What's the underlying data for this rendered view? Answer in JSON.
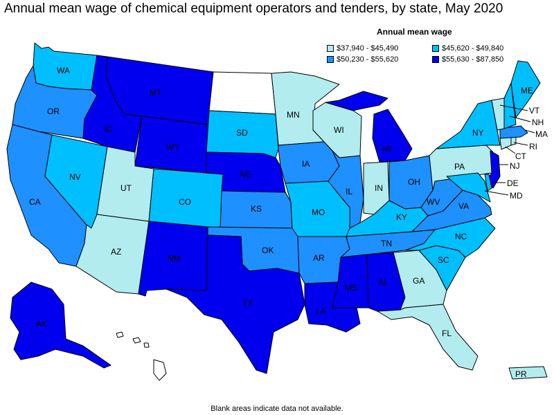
{
  "title": "Annual mean wage of chemical equipment operators and tenders, by state, May 2020",
  "legend": {
    "title": "Annual mean wage",
    "items": [
      {
        "label": "$37,940 - $45,490",
        "color": "#b2ecef"
      },
      {
        "label": "$45,620 - $49,840",
        "color": "#00bfff"
      },
      {
        "label": "$50,230 - $55,620",
        "color": "#1e90ff"
      },
      {
        "label": "$55,630 - $87,850",
        "color": "#0000ee"
      }
    ]
  },
  "no_data_color": "#ffffff",
  "footnote": "Blank areas indicate data not available.",
  "states": {
    "WA": {
      "label": "WA",
      "bin": 1
    },
    "OR": {
      "label": "OR",
      "bin": 2
    },
    "CA": {
      "label": "CA",
      "bin": 2
    },
    "ID": {
      "label": "ID",
      "bin": 3
    },
    "NV": {
      "label": "NV",
      "bin": 1
    },
    "MT": {
      "label": "MT",
      "bin": 3
    },
    "WY": {
      "label": "WY",
      "bin": 3
    },
    "UT": {
      "label": "UT",
      "bin": 0
    },
    "AZ": {
      "label": "AZ",
      "bin": 0
    },
    "CO": {
      "label": "CO",
      "bin": 1
    },
    "NM": {
      "label": "NM",
      "bin": 3
    },
    "ND": {
      "label": "",
      "bin": -1
    },
    "SD": {
      "label": "SD",
      "bin": 1
    },
    "NE": {
      "label": "NE",
      "bin": 3
    },
    "KS": {
      "label": "KS",
      "bin": 2
    },
    "OK": {
      "label": "OK",
      "bin": 2
    },
    "TX": {
      "label": "TX",
      "bin": 3
    },
    "MN": {
      "label": "MN",
      "bin": 0
    },
    "IA": {
      "label": "IA",
      "bin": 2
    },
    "MO": {
      "label": "MO",
      "bin": 1
    },
    "AR": {
      "label": "AR",
      "bin": 2
    },
    "LA": {
      "label": "LA",
      "bin": 3
    },
    "WI": {
      "label": "WI",
      "bin": 0
    },
    "IL": {
      "label": "IL",
      "bin": 2
    },
    "MI": {
      "label": "MI",
      "bin": 3
    },
    "IN": {
      "label": "IN",
      "bin": 0
    },
    "OH": {
      "label": "OH",
      "bin": 2
    },
    "KY": {
      "label": "KY",
      "bin": 1
    },
    "TN": {
      "label": "TN",
      "bin": 2
    },
    "MS": {
      "label": "MS",
      "bin": 3
    },
    "AL": {
      "label": "AL",
      "bin": 3
    },
    "GA": {
      "label": "GA",
      "bin": 0
    },
    "FL": {
      "label": "FL",
      "bin": 0
    },
    "SC": {
      "label": "SC",
      "bin": 1
    },
    "NC": {
      "label": "NC",
      "bin": 1
    },
    "VA": {
      "label": "VA",
      "bin": 2
    },
    "WV": {
      "label": "WV",
      "bin": 2
    },
    "PA": {
      "label": "PA",
      "bin": 0
    },
    "NY": {
      "label": "NY",
      "bin": 1
    },
    "ME": {
      "label": "ME",
      "bin": 1
    },
    "VT": {
      "label": "VT",
      "bin": 0
    },
    "NH": {
      "label": "NH",
      "bin": 1
    },
    "MA": {
      "label": "MA",
      "bin": 2
    },
    "RI": {
      "label": "RI",
      "bin": 0
    },
    "CT": {
      "label": "CT",
      "bin": 0
    },
    "NJ": {
      "label": "NJ",
      "bin": 3
    },
    "DE": {
      "label": "DE",
      "bin": 1
    },
    "MD": {
      "label": "MD",
      "bin": 1
    },
    "AK": {
      "label": "AK",
      "bin": 3
    },
    "HI": {
      "label": "",
      "bin": -1
    },
    "PR": {
      "label": "PR",
      "bin": 0
    }
  }
}
